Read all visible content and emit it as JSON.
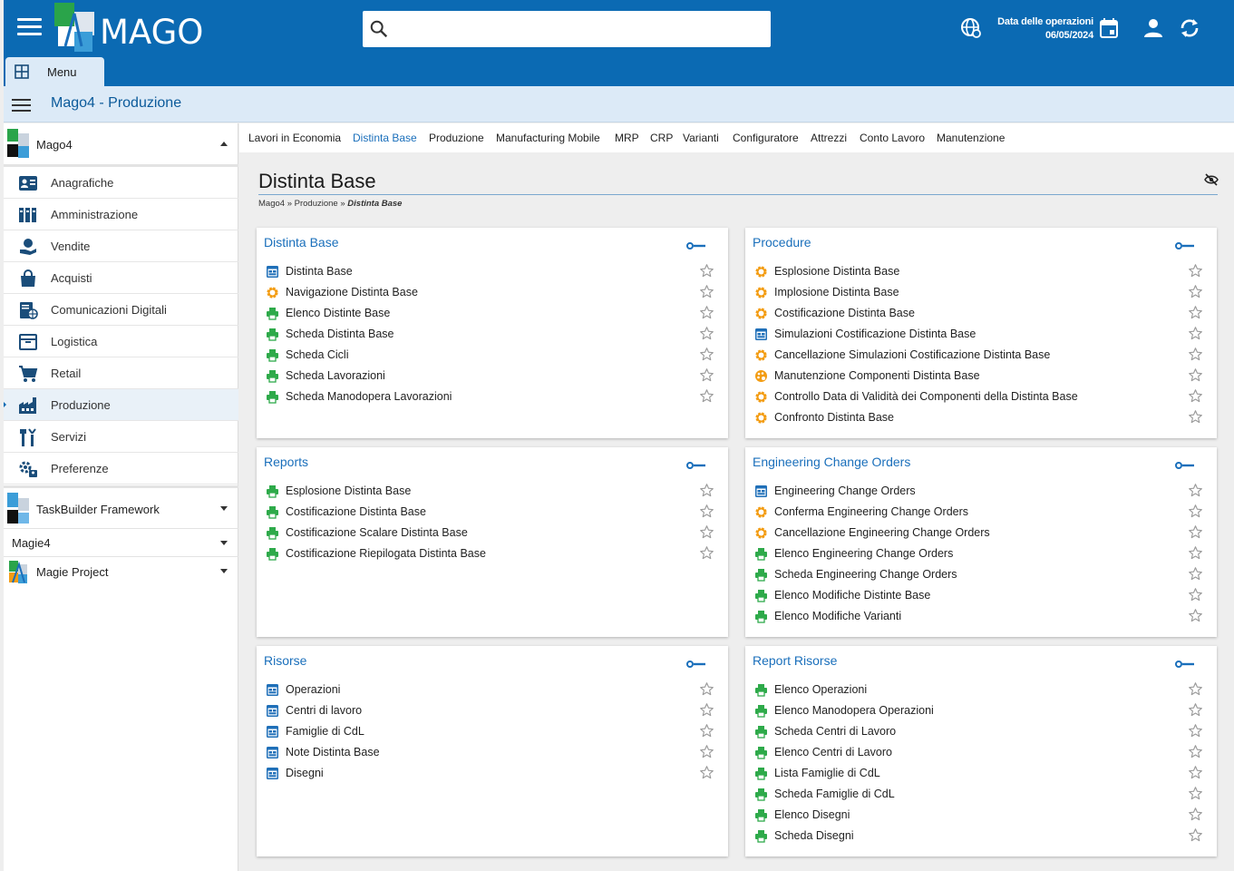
{
  "header": {
    "logo_text": "MAGO",
    "search_placeholder": "",
    "op_date_label": "Data delle operazioni",
    "op_date_value": "06/05/2024",
    "menu_tab": "Menu"
  },
  "appbar": {
    "title": "Mago4 - Produzione"
  },
  "sidebar": {
    "group_main": "Mago4",
    "items": [
      {
        "label": "Anagrafiche",
        "icon": "contacts-icon"
      },
      {
        "label": "Amministrazione",
        "icon": "ledger-icon"
      },
      {
        "label": "Vendite",
        "icon": "hand-coin-icon"
      },
      {
        "label": "Acquisti",
        "icon": "shopping-bag-icon"
      },
      {
        "label": "Comunicazioni Digitali",
        "icon": "digital-document-icon"
      },
      {
        "label": "Logistica",
        "icon": "box-icon"
      },
      {
        "label": "Retail",
        "icon": "cart-icon"
      },
      {
        "label": "Produzione",
        "icon": "factory-icon"
      },
      {
        "label": "Servizi",
        "icon": "tools-icon"
      },
      {
        "label": "Preferenze",
        "icon": "settings-user-icon"
      }
    ],
    "groups": [
      "TaskBuilder Framework",
      "Magie4",
      "Magie Project"
    ]
  },
  "tabs": [
    "Lavori in Economia",
    "Distinta Base",
    "Produzione",
    "Manufacturing Mobile",
    "MRP",
    "CRP",
    "Varianti",
    "Configuratore",
    "Attrezzi",
    "Conto Lavoro",
    "Manutenzione"
  ],
  "active_tab": "Distinta Base",
  "page": {
    "title": "Distinta Base",
    "crumb1": "Mago4",
    "crumb2": "Produzione",
    "crumb3": "Distinta Base",
    "sep": "»"
  },
  "colors": {
    "accent": "#0b6ab3",
    "link": "#1a6fbb",
    "gear": "#f39c12",
    "print": "#2eaa4a",
    "form": "#1f6fb8"
  },
  "cards": [
    {
      "title": "Distinta Base",
      "items": [
        {
          "label": "Distinta Base",
          "type": "form"
        },
        {
          "label": "Navigazione Distinta Base",
          "type": "gear"
        },
        {
          "label": "Elenco Distinte Base",
          "type": "print"
        },
        {
          "label": "Scheda Distinta Base",
          "type": "print"
        },
        {
          "label": "Scheda Cicli",
          "type": "print"
        },
        {
          "label": "Scheda Lavorazioni",
          "type": "print"
        },
        {
          "label": "Scheda Manodopera Lavorazioni",
          "type": "print"
        }
      ]
    },
    {
      "title": "Procedure",
      "items": [
        {
          "label": "Esplosione Distinta Base",
          "type": "gear"
        },
        {
          "label": "Implosione Distinta Base",
          "type": "gear"
        },
        {
          "label": "Costificazione Distinta Base",
          "type": "gear"
        },
        {
          "label": "Simulazioni Costificazione Distinta Base",
          "type": "form"
        },
        {
          "label": "Cancellazione Simulazioni Costificazione Distinta Base",
          "type": "gear"
        },
        {
          "label": "Manutenzione Componenti Distinta Base",
          "type": "palette"
        },
        {
          "label": "Controllo Data di Validità dei Componenti della Distinta Base",
          "type": "gear"
        },
        {
          "label": "Confronto Distinta Base",
          "type": "gear"
        }
      ]
    },
    {
      "title": "Reports",
      "items": [
        {
          "label": "Esplosione Distinta Base",
          "type": "print"
        },
        {
          "label": "Costificazione Distinta Base",
          "type": "print"
        },
        {
          "label": "Costificazione Scalare Distinta Base",
          "type": "print"
        },
        {
          "label": "Costificazione Riepilogata Distinta Base",
          "type": "print"
        }
      ]
    },
    {
      "title": "Engineering Change Orders",
      "items": [
        {
          "label": "Engineering Change Orders",
          "type": "form"
        },
        {
          "label": "Conferma Engineering Change Orders",
          "type": "gear"
        },
        {
          "label": "Cancellazione Engineering Change Orders",
          "type": "gear"
        },
        {
          "label": "Elenco Engineering Change Orders",
          "type": "print"
        },
        {
          "label": "Scheda Engineering Change Orders",
          "type": "print"
        },
        {
          "label": "Elenco Modifiche Distinte Base",
          "type": "print"
        },
        {
          "label": "Elenco Modifiche Varianti",
          "type": "print"
        }
      ]
    },
    {
      "title": "Risorse",
      "items": [
        {
          "label": "Operazioni",
          "type": "form"
        },
        {
          "label": "Centri di lavoro",
          "type": "form"
        },
        {
          "label": "Famiglie di CdL",
          "type": "form"
        },
        {
          "label": "Note Distinta Base",
          "type": "form"
        },
        {
          "label": "Disegni",
          "type": "form"
        }
      ]
    },
    {
      "title": "Report Risorse",
      "items": [
        {
          "label": "Elenco Operazioni",
          "type": "print"
        },
        {
          "label": "Elenco Manodopera Operazioni",
          "type": "print"
        },
        {
          "label": "Scheda Centri di Lavoro",
          "type": "print"
        },
        {
          "label": "Elenco Centri di Lavoro",
          "type": "print"
        },
        {
          "label": "Lista Famiglie di CdL",
          "type": "print"
        },
        {
          "label": "Scheda Famiglie di CdL",
          "type": "print"
        },
        {
          "label": "Elenco Disegni",
          "type": "print"
        },
        {
          "label": "Scheda Disegni",
          "type": "print"
        }
      ]
    }
  ]
}
